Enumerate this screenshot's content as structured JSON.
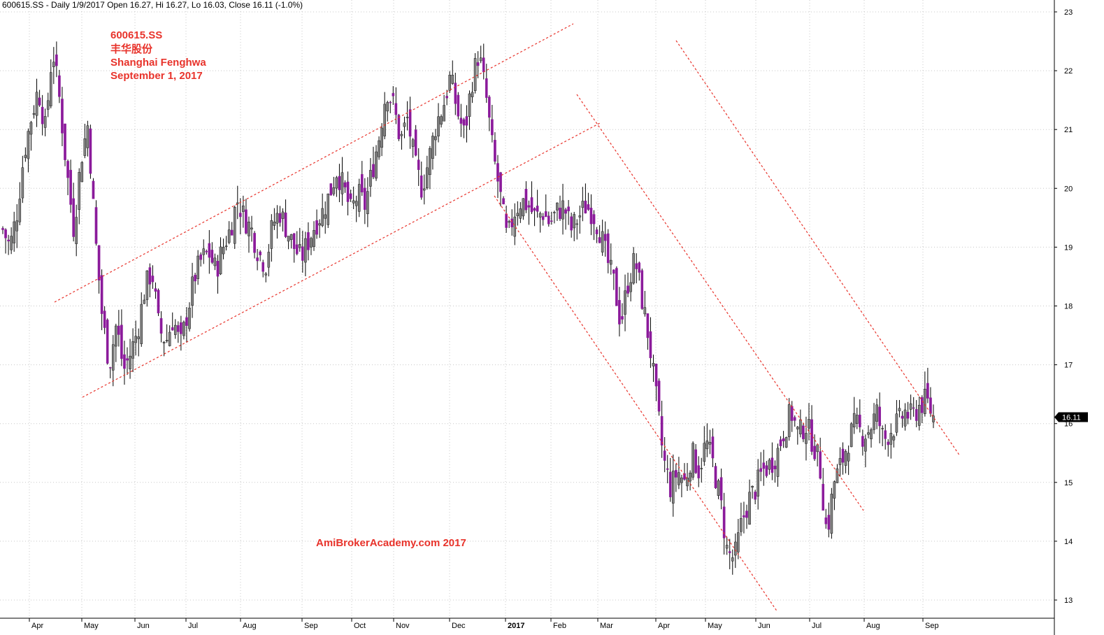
{
  "header": {
    "text": "600615.SS - Daily 1/9/2017 Open 16.27, Hi 16.27, Lo 16.03, Close 16.11 (-1.0%)"
  },
  "annotations": {
    "symbol": "600615.SS",
    "chinese_name": "丰华股份",
    "company": "Shanghai Fenghwa",
    "date": "September 1, 2017",
    "watermark": "AmiBrokerAcademy.com 2017",
    "color": "#e8332b"
  },
  "price_label": "16.11",
  "colors": {
    "up_candle": "#7f7f7f",
    "down_candle": "#8b1a9b",
    "wick": "#000000",
    "trendline": "#e8332b",
    "grid": "#c8c8c8",
    "price_box": "#000000"
  },
  "chart_data": {
    "type": "candlestick",
    "ylim": [
      12.8,
      23.2
    ],
    "yticks": [
      13,
      14,
      15,
      16,
      17,
      18,
      19,
      20,
      21,
      22,
      23
    ],
    "x_months": [
      {
        "label": "Apr"
      },
      {
        "label": "May"
      },
      {
        "label": "Jun"
      },
      {
        "label": "Jul"
      },
      {
        "label": "Aug"
      },
      {
        "label": "Sep"
      },
      {
        "label": "Oct"
      },
      {
        "label": "Nov"
      },
      {
        "label": "Dec"
      },
      {
        "label": "2017",
        "bold": true
      },
      {
        "label": "Feb"
      },
      {
        "label": "Mar"
      },
      {
        "label": "Apr"
      },
      {
        "label": "May"
      },
      {
        "label": "Jun"
      },
      {
        "label": "Jul"
      },
      {
        "label": "Aug"
      },
      {
        "label": "Sep"
      }
    ],
    "grid": true,
    "last_close": 16.11,
    "approx_closes": [
      19.3,
      19.0,
      19.6,
      20.6,
      21.2,
      21.7,
      21.0,
      22.4,
      21.5,
      20.3,
      19.3,
      20.5,
      21.1,
      19.2,
      17.8,
      17.0,
      17.7,
      16.9,
      17.2,
      17.6,
      18.3,
      18.6,
      17.6,
      17.4,
      17.8,
      17.3,
      17.9,
      18.5,
      18.8,
      18.9,
      18.6,
      19.0,
      19.3,
      19.8,
      19.5,
      19.3,
      18.9,
      18.7,
      19.4,
      19.6,
      19.3,
      19.0,
      18.8,
      19.1,
      19.4,
      19.6,
      19.9,
      20.3,
      20.0,
      19.6,
      19.9,
      19.7,
      20.3,
      20.9,
      21.7,
      21.4,
      20.8,
      21.2,
      20.4,
      20.0,
      20.5,
      21.1,
      21.4,
      21.9,
      21.3,
      20.9,
      21.8,
      22.3,
      21.6,
      20.6,
      19.9,
      19.1,
      19.6,
      19.8,
      19.7,
      19.5,
      19.6,
      19.4,
      19.6,
      19.7,
      19.3,
      19.5,
      19.7,
      19.6,
      19.3,
      18.8,
      18.4,
      17.7,
      18.4,
      18.8,
      18.1,
      17.4,
      16.4,
      15.4,
      14.9,
      15.2,
      15.0,
      15.5,
      15.2,
      15.7,
      15.3,
      14.7,
      13.8,
      13.7,
      14.3,
      14.7,
      14.9,
      15.2,
      15.3,
      15.5,
      15.9,
      16.2,
      15.8,
      16.0,
      15.7,
      15.3,
      14.1,
      15.0,
      15.3,
      15.7,
      16.0,
      15.8,
      15.9,
      16.2,
      15.7,
      15.9,
      16.0,
      16.2,
      16.1,
      16.3,
      16.4,
      16.11
    ]
  }
}
